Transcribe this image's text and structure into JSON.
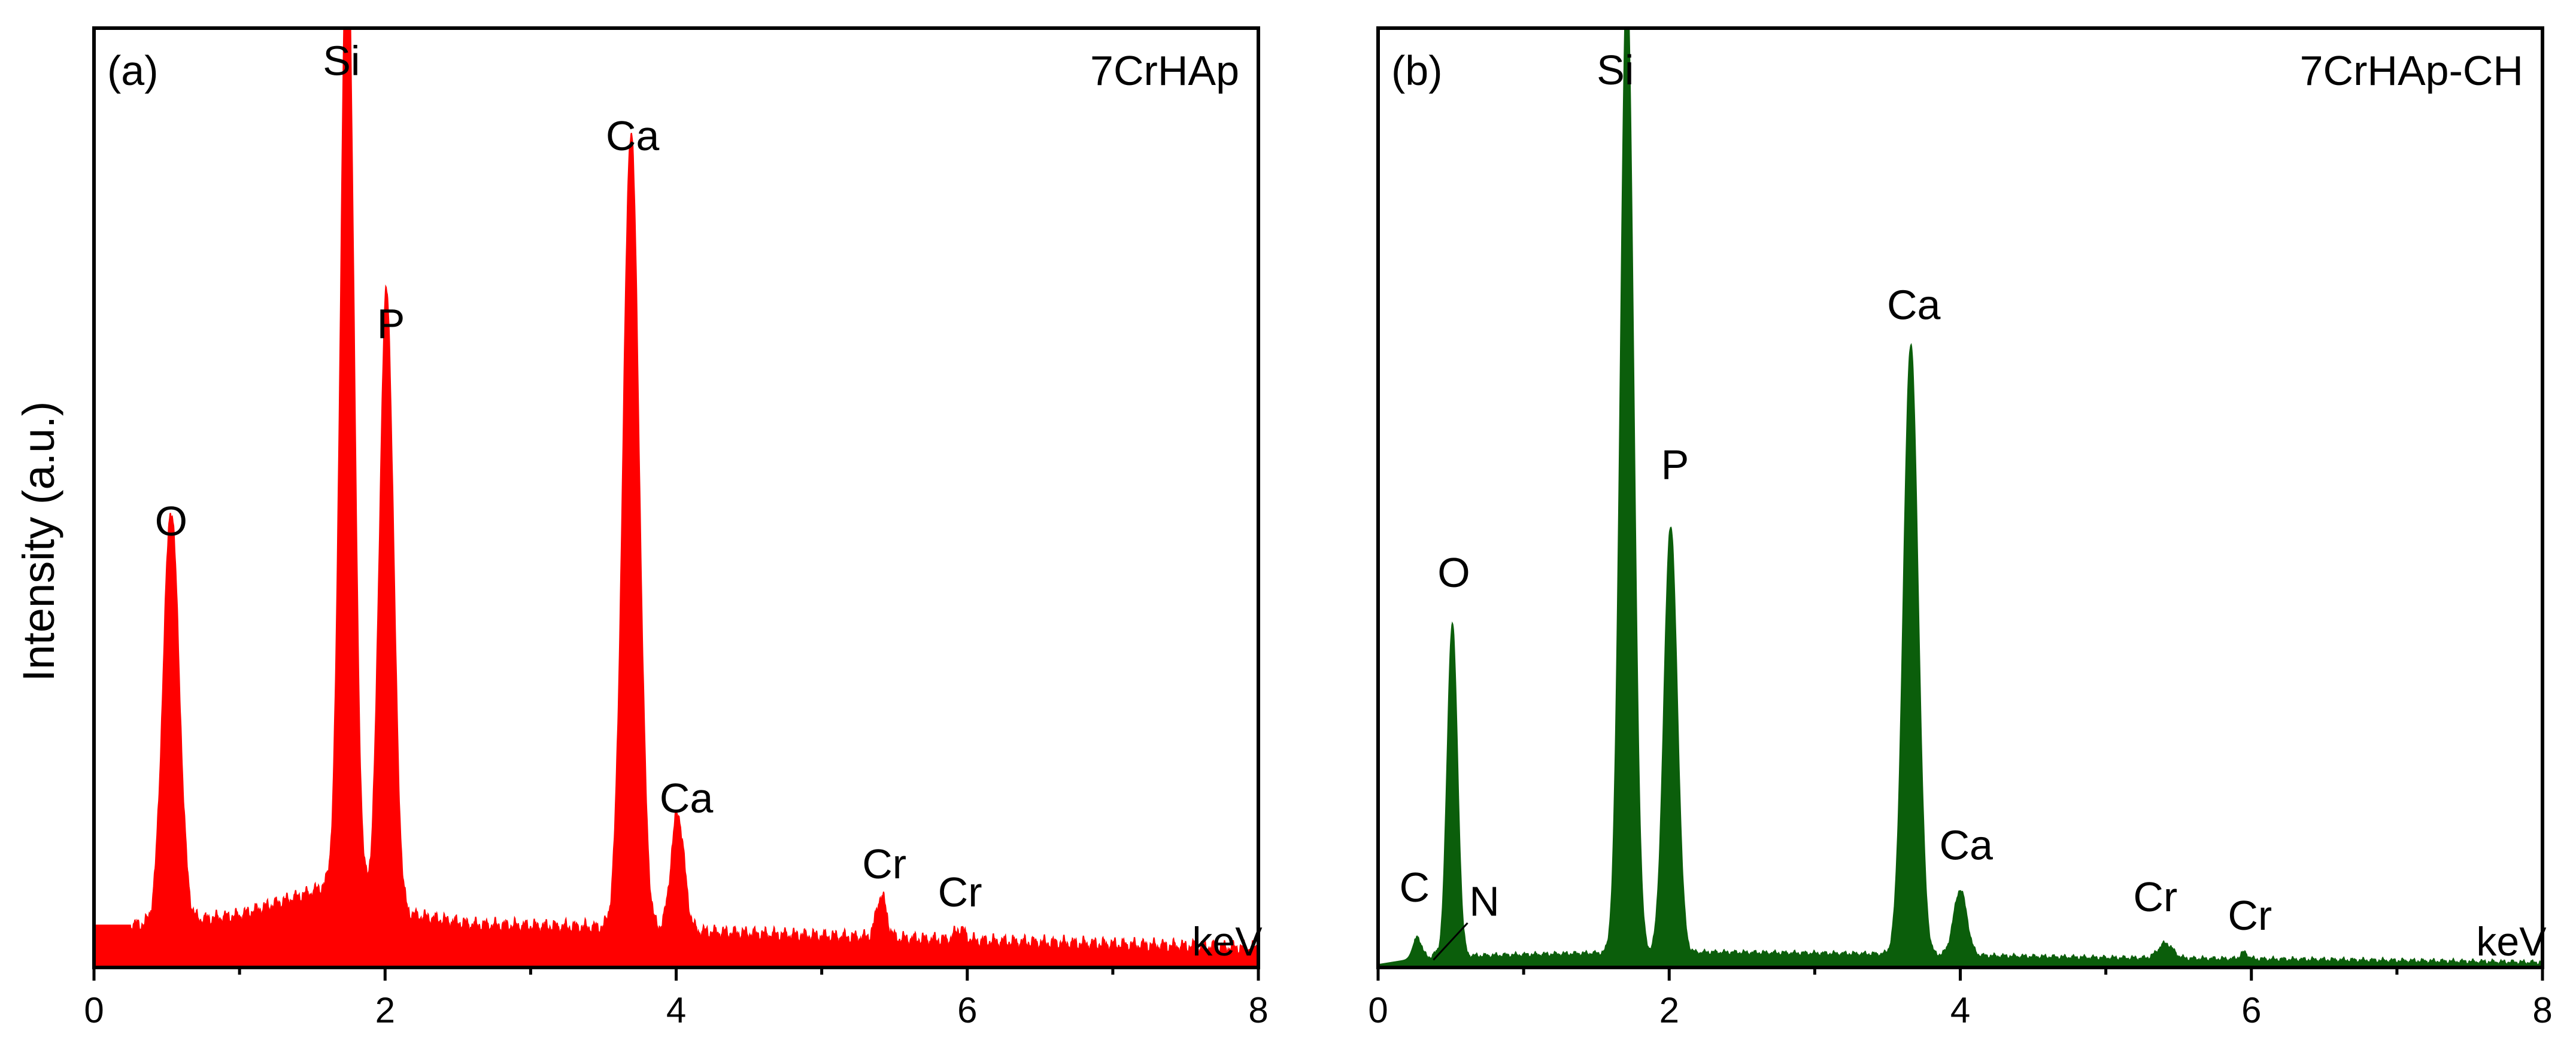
{
  "ylabel": "Intensity (a.u.)",
  "chart_data": [
    {
      "type": "area",
      "panel": "(a)",
      "title": "7CrHAp",
      "color": "#ff0000",
      "xlabel": "keV",
      "ylabel": "Intensity (a.u.)",
      "xlim": [
        0,
        8
      ],
      "ylim": [
        0,
        100
      ],
      "xticks": [
        0,
        2,
        4,
        6,
        8
      ],
      "baseline": [
        [
          0,
          4.5
        ],
        [
          0.4,
          4.5
        ],
        [
          1.0,
          5.5
        ],
        [
          1.5,
          8
        ],
        [
          1.7,
          9.5
        ],
        [
          2.0,
          6
        ],
        [
          2.6,
          4.5
        ],
        [
          3.5,
          4.2
        ],
        [
          4.6,
          3.5
        ],
        [
          6.0,
          2.8
        ],
        [
          8.0,
          2.0
        ]
      ],
      "peaks": [
        {
          "label": "O",
          "x": 0.53,
          "height": 44,
          "width": 0.055
        },
        {
          "label": "Si",
          "x": 1.74,
          "height": 104,
          "width": 0.045
        },
        {
          "label": "P",
          "x": 2.01,
          "height": 66,
          "width": 0.048
        },
        {
          "label": "Ca",
          "x": 3.69,
          "height": 85,
          "width": 0.055
        },
        {
          "label": "Ca",
          "x": 4.01,
          "height": 12.5,
          "width": 0.045
        },
        {
          "label": "Cr",
          "x": 5.41,
          "height": 4.5,
          "width": 0.035
        },
        {
          "label": "Cr",
          "x": 5.95,
          "height": 1.2,
          "width": 0.035
        }
      ],
      "annotations": [
        {
          "text": "O",
          "x": 0.53,
          "y": 46
        },
        {
          "text": "Si",
          "x": 1.7,
          "y": 95
        },
        {
          "text": "P",
          "x": 2.04,
          "y": 67
        },
        {
          "text": "Ca",
          "x": 3.7,
          "y": 87
        },
        {
          "text": "Ca",
          "x": 4.07,
          "y": 16.5
        },
        {
          "text": "Cr",
          "x": 5.43,
          "y": 9.5
        },
        {
          "text": "Cr",
          "x": 5.95,
          "y": 6.5
        }
      ]
    },
    {
      "type": "area",
      "panel": "(b)",
      "title": "7CrHAp-CH",
      "color": "#0b5e0b",
      "xlabel": "keV",
      "ylabel": "Intensity (a.u.)",
      "xlim": [
        0,
        8
      ],
      "ylim": [
        0,
        100
      ],
      "xticks": [
        0,
        2,
        4,
        6,
        8
      ],
      "baseline": [
        [
          0,
          0.3
        ],
        [
          0.2,
          0.8
        ],
        [
          0.6,
          1.2
        ],
        [
          1.5,
          1.5
        ],
        [
          2.3,
          1.6
        ],
        [
          3.5,
          1.4
        ],
        [
          5.0,
          1.0
        ],
        [
          6.5,
          0.8
        ],
        [
          8.0,
          0.5
        ]
      ],
      "peaks": [
        {
          "label": "C",
          "x": 0.27,
          "height": 2.3,
          "width": 0.03
        },
        {
          "label": "N",
          "x": 0.39,
          "height": 0.4,
          "width": 0.02
        },
        {
          "label": "O",
          "x": 0.51,
          "height": 35.5,
          "width": 0.035
        },
        {
          "label": "Si",
          "x": 1.71,
          "height": 104,
          "width": 0.045
        },
        {
          "label": "P",
          "x": 2.01,
          "height": 45.5,
          "width": 0.045
        },
        {
          "label": "Ca",
          "x": 3.66,
          "height": 65,
          "width": 0.05
        },
        {
          "label": "Ca",
          "x": 4.0,
          "height": 7.0,
          "width": 0.045
        },
        {
          "label": "Cr",
          "x": 5.41,
          "height": 1.6,
          "width": 0.05
        },
        {
          "label": "Cr",
          "x": 5.95,
          "height": 0.7,
          "width": 0.025
        }
      ],
      "annotations": [
        {
          "text": "C",
          "x": 0.25,
          "y": 7.0
        },
        {
          "text": "N",
          "x": 0.73,
          "y": 5.5
        },
        {
          "text": "O",
          "x": 0.52,
          "y": 40.5
        },
        {
          "text": "Si",
          "x": 1.63,
          "y": 94
        },
        {
          "text": "P",
          "x": 2.04,
          "y": 52
        },
        {
          "text": "Ca",
          "x": 3.68,
          "y": 69
        },
        {
          "text": "Ca",
          "x": 4.04,
          "y": 11.5
        },
        {
          "text": "Cr",
          "x": 5.34,
          "y": 6.0
        },
        {
          "text": "Cr",
          "x": 5.99,
          "y": 4.0
        }
      ]
    }
  ]
}
